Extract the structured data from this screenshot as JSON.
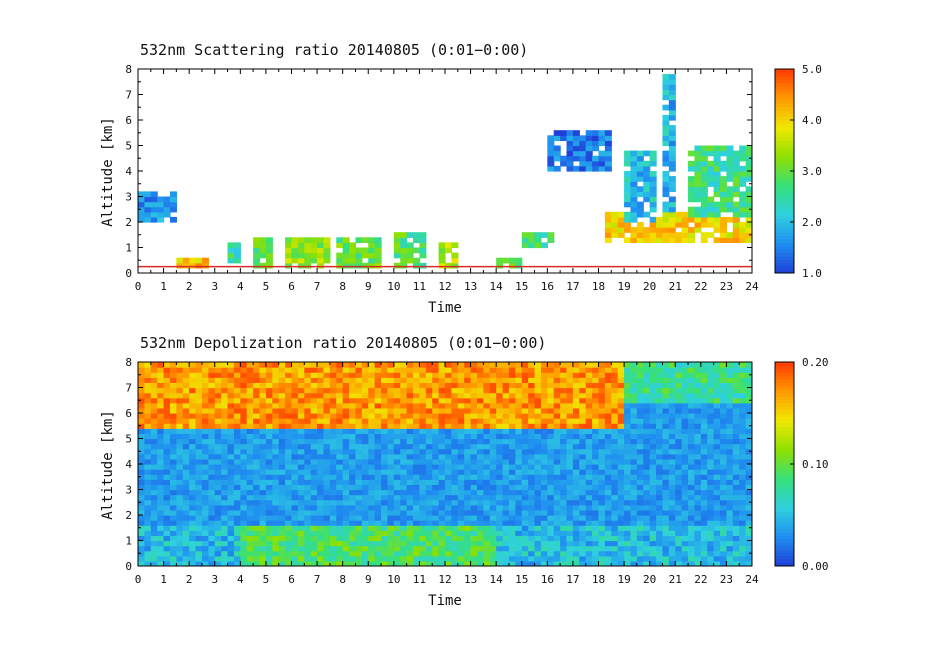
{
  "chart_data": [
    {
      "type": "heatmap",
      "title": "532nm Scattering ratio  20140805 (0:01−0:00)",
      "xlabel": "Time",
      "ylabel": "Altitude [km]",
      "xlim": [
        0,
        24
      ],
      "ylim": [
        0,
        8
      ],
      "x_ticks": [
        "0",
        "1",
        "2",
        "3",
        "4",
        "5",
        "6",
        "7",
        "8",
        "9",
        "10",
        "11",
        "12",
        "13",
        "14",
        "15",
        "16",
        "17",
        "18",
        "19",
        "20",
        "21",
        "22",
        "23",
        "24"
      ],
      "y_ticks": [
        "0",
        "1",
        "2",
        "3",
        "4",
        "5",
        "6",
        "7",
        "8"
      ],
      "colorbar": {
        "range": [
          1.0,
          5.0
        ],
        "ticks": [
          "1.0",
          "2.0",
          "3.0",
          "4.0",
          "5.0"
        ],
        "colors": [
          "#1f3fd8",
          "#1f8ef0",
          "#2fd0e0",
          "#36e07a",
          "#8fe000",
          "#f0e800",
          "#ff9a00",
          "#ff3a00"
        ]
      },
      "features": [
        {
          "t": [
            1.5,
            2.7
          ],
          "z": [
            0.2,
            0.7
          ],
          "level": 4.2
        },
        {
          "t": [
            3.4,
            4.1
          ],
          "z": [
            0.5,
            1.2
          ],
          "level": 2.5
        },
        {
          "t": [
            4.6,
            5.3
          ],
          "z": [
            0.3,
            1.4
          ],
          "level": 3.0
        },
        {
          "t": [
            5.8,
            7.6
          ],
          "z": [
            0.3,
            1.3
          ],
          "level": 3.3
        },
        {
          "t": [
            7.8,
            9.4
          ],
          "z": [
            0.3,
            1.4
          ],
          "level": 3.0
        },
        {
          "t": [
            10.0,
            11.2
          ],
          "z": [
            0.3,
            1.6
          ],
          "level": 2.8
        },
        {
          "t": [
            11.8,
            12.6
          ],
          "z": [
            0.3,
            1.2
          ],
          "level": 3.5
        },
        {
          "t": [
            14.1,
            15.1
          ],
          "z": [
            0.3,
            0.6
          ],
          "level": 3.0
        },
        {
          "t": [
            15.1,
            16.3
          ],
          "z": [
            1.0,
            1.6
          ],
          "level": 2.6
        },
        {
          "t": [
            18.2,
            24.0
          ],
          "z": [
            1.3,
            2.4
          ],
          "level": 4.0
        },
        {
          "t": [
            19.0,
            20.3
          ],
          "z": [
            2.0,
            4.8
          ],
          "level": 2.0
        },
        {
          "t": [
            20.6,
            21.0
          ],
          "z": [
            2.5,
            7.8
          ],
          "level": 1.9
        },
        {
          "t": [
            21.4,
            24.0
          ],
          "z": [
            2.3,
            5.0
          ],
          "level": 2.6
        },
        {
          "t": [
            0.0,
            1.5
          ],
          "z": [
            2.0,
            3.3
          ],
          "level": 1.6
        },
        {
          "t": [
            16.0,
            18.5
          ],
          "z": [
            4.0,
            5.5
          ],
          "level": 1.4
        }
      ]
    },
    {
      "type": "heatmap",
      "title": "532nm Depolization ratio  20140805 (0:01−0:00)",
      "xlabel": "Time",
      "ylabel": "Altitude [km]",
      "xlim": [
        0,
        24
      ],
      "ylim": [
        0,
        8
      ],
      "x_ticks": [
        "0",
        "1",
        "2",
        "3",
        "4",
        "5",
        "6",
        "7",
        "8",
        "9",
        "10",
        "11",
        "12",
        "13",
        "14",
        "15",
        "16",
        "17",
        "18",
        "19",
        "20",
        "21",
        "22",
        "23",
        "24"
      ],
      "y_ticks": [
        "0",
        "1",
        "2",
        "3",
        "4",
        "5",
        "6",
        "7",
        "8"
      ],
      "colorbar": {
        "range": [
          0.0,
          0.2
        ],
        "ticks": [
          "0.00",
          "0.10",
          "0.20"
        ],
        "colors": [
          "#1f3fd8",
          "#1f8ef0",
          "#2fd0e0",
          "#36e07a",
          "#8fe000",
          "#f0e800",
          "#ff9a00",
          "#ff3a00"
        ]
      },
      "features": [
        {
          "t": [
            0.0,
            19.0
          ],
          "z": [
            5.5,
            8.0
          ],
          "level": 0.17
        },
        {
          "t": [
            19.0,
            24.0
          ],
          "z": [
            6.5,
            8.0
          ],
          "level": 0.08
        },
        {
          "t": [
            0.0,
            24.0
          ],
          "z": [
            0.0,
            1.5
          ],
          "level": 0.05
        },
        {
          "t": [
            4.0,
            14.0
          ],
          "z": [
            0.0,
            1.5
          ],
          "level": 0.09
        }
      ]
    }
  ]
}
